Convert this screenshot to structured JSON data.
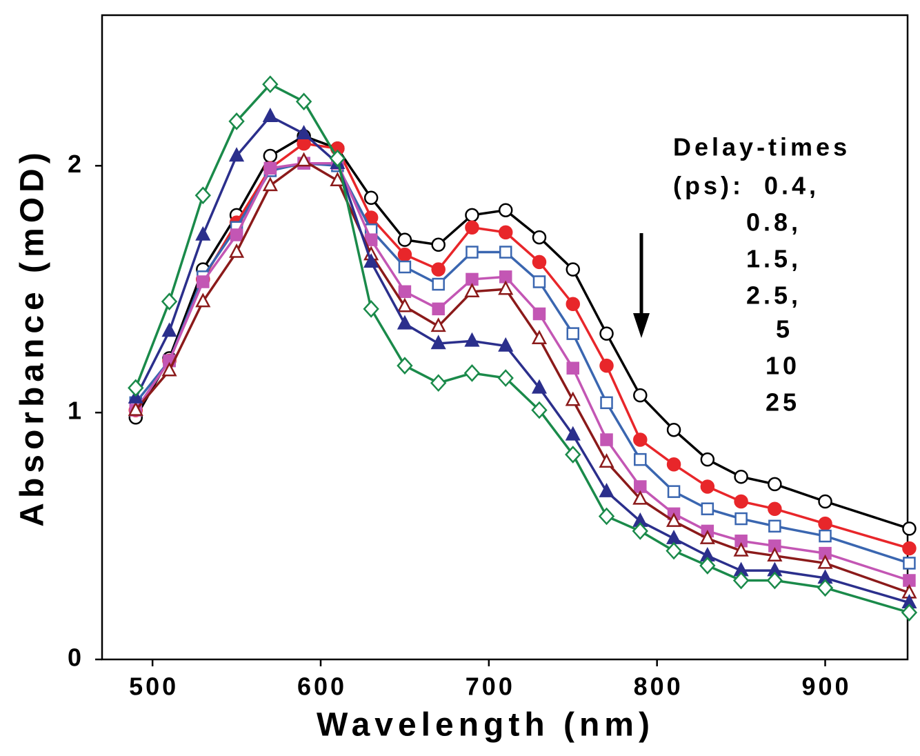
{
  "chart_data": {
    "type": "line",
    "x_label": "Wavelength (nm)",
    "y_label": "Absorbance (mOD)",
    "x": [
      490,
      510,
      530,
      550,
      570,
      590,
      610,
      630,
      650,
      670,
      690,
      710,
      730,
      750,
      770,
      790,
      810,
      830,
      850,
      870,
      900,
      950
    ],
    "xlim": [
      470,
      949
    ],
    "ylim": [
      0,
      2.61
    ],
    "xticks": [
      500,
      600,
      700,
      800,
      900
    ],
    "yticks": [
      0,
      1,
      2
    ],
    "legend_title": "Delay-times",
    "legend_unit": "(ps):",
    "series": [
      {
        "name": "0.4,",
        "color": "#000000",
        "marker": "circle",
        "filled": false,
        "values": [
          0.98,
          1.22,
          1.58,
          1.8,
          2.04,
          2.12,
          2.07,
          1.87,
          1.7,
          1.68,
          1.8,
          1.82,
          1.71,
          1.58,
          1.32,
          1.07,
          0.93,
          0.81,
          0.74,
          0.71,
          0.64,
          0.53
        ]
      },
      {
        "name": "0.8,",
        "color": "#e8262a",
        "marker": "circle",
        "filled": true,
        "values": [
          1.01,
          1.21,
          1.54,
          1.77,
          1.99,
          2.09,
          2.07,
          1.79,
          1.64,
          1.58,
          1.75,
          1.73,
          1.61,
          1.44,
          1.19,
          0.89,
          0.79,
          0.7,
          0.64,
          0.61,
          0.55,
          0.45
        ]
      },
      {
        "name": "1.5,",
        "color": "#3a66b0",
        "marker": "square",
        "filled": false,
        "values": [
          1.04,
          1.21,
          1.55,
          1.75,
          1.98,
          2.01,
          2.0,
          1.74,
          1.59,
          1.52,
          1.65,
          1.65,
          1.53,
          1.32,
          1.04,
          0.81,
          0.68,
          0.61,
          0.57,
          0.54,
          0.5,
          0.39
        ]
      },
      {
        "name": "2.5,",
        "color": "#c356b4",
        "marker": "square",
        "filled": true,
        "values": [
          1.01,
          1.21,
          1.53,
          1.72,
          1.99,
          2.01,
          2.01,
          1.7,
          1.49,
          1.42,
          1.54,
          1.55,
          1.4,
          1.18,
          0.89,
          0.7,
          0.59,
          0.52,
          0.48,
          0.46,
          0.43,
          0.32
        ]
      },
      {
        "name": "5",
        "color": "#8b1a1a",
        "marker": "triangle",
        "filled": false,
        "values": [
          1.01,
          1.17,
          1.45,
          1.65,
          1.92,
          2.02,
          1.94,
          1.64,
          1.43,
          1.35,
          1.49,
          1.5,
          1.3,
          1.05,
          0.8,
          0.65,
          0.56,
          0.49,
          0.44,
          0.42,
          0.39,
          0.27
        ]
      },
      {
        "name": "10",
        "color": "#2b2f8c",
        "marker": "triangle",
        "filled": true,
        "values": [
          1.06,
          1.33,
          1.72,
          2.04,
          2.2,
          2.13,
          2.01,
          1.61,
          1.36,
          1.28,
          1.29,
          1.27,
          1.1,
          0.91,
          0.68,
          0.56,
          0.49,
          0.42,
          0.36,
          0.36,
          0.33,
          0.23
        ]
      },
      {
        "name": "25",
        "color": "#1a8a4a",
        "marker": "diamond",
        "filled": false,
        "values": [
          1.1,
          1.45,
          1.88,
          2.18,
          2.33,
          2.26,
          2.03,
          1.42,
          1.19,
          1.12,
          1.16,
          1.14,
          1.01,
          0.83,
          0.58,
          0.52,
          0.44,
          0.38,
          0.32,
          0.32,
          0.29,
          0.19
        ]
      }
    ]
  }
}
